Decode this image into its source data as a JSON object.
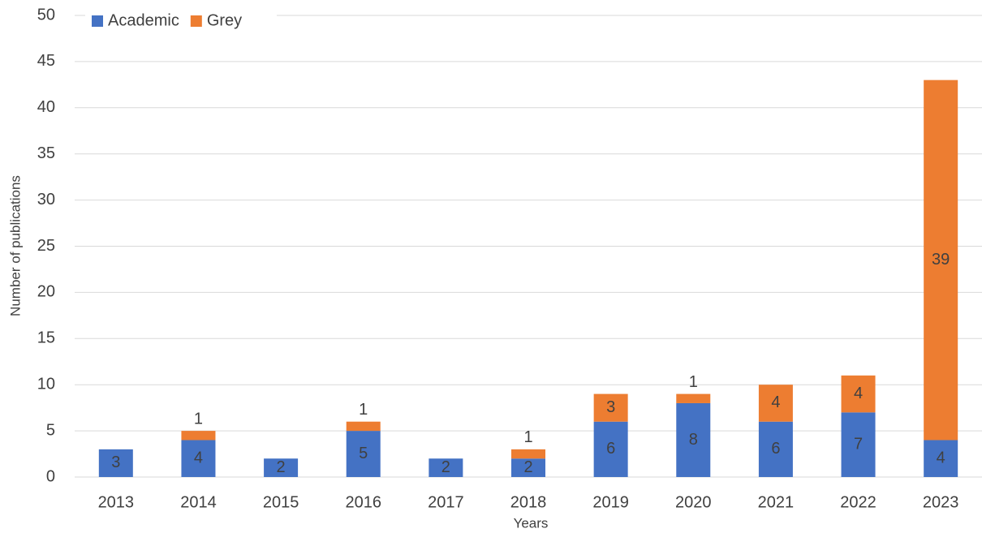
{
  "chart_data": {
    "type": "stacked_bar",
    "x_label": "Years",
    "y_label": "Number of publications",
    "categories": [
      "2013",
      "2014",
      "2015",
      "2016",
      "2017",
      "2018",
      "2019",
      "2020",
      "2021",
      "2022",
      "2023"
    ],
    "series": [
      {
        "name": "Academic",
        "color": "#4472c4",
        "values": [
          3,
          4,
          2,
          5,
          2,
          2,
          6,
          8,
          6,
          7,
          4
        ]
      },
      {
        "name": "Grey",
        "color": "#ed7d31",
        "values": [
          null,
          1,
          null,
          1,
          null,
          1,
          3,
          1,
          4,
          4,
          39
        ]
      }
    ],
    "ylim": [
      0,
      50
    ],
    "yticks": [
      0,
      5,
      10,
      15,
      20,
      25,
      30,
      35,
      40,
      45,
      50
    ],
    "grid": true,
    "legend": "top-left"
  }
}
